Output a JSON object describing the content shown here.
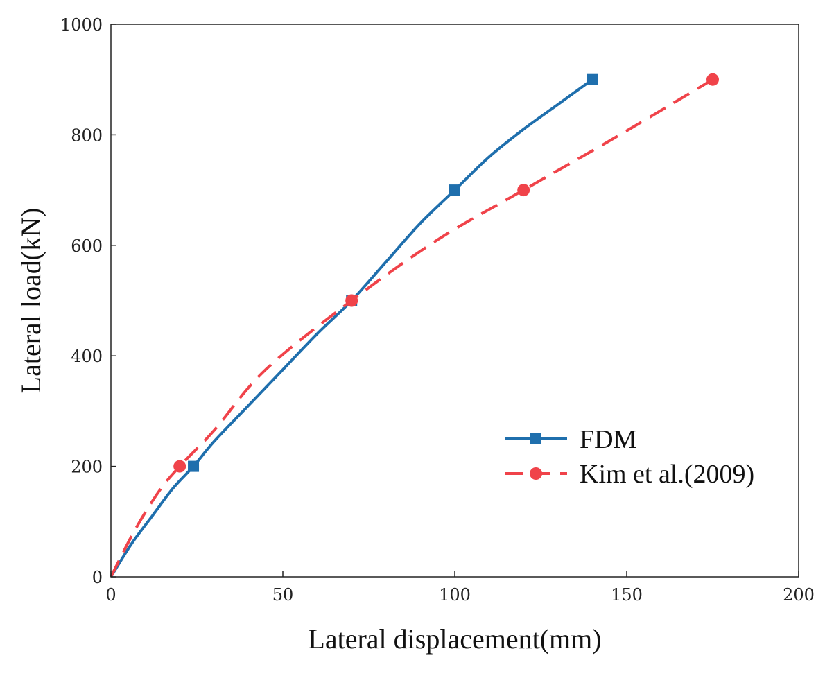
{
  "chart_data": {
    "type": "line",
    "title": "",
    "xlabel": "Lateral displacement(mm)",
    "ylabel": "Lateral load(kN)",
    "xlim": [
      0,
      200
    ],
    "ylim": [
      0,
      1000
    ],
    "xticks": [
      0,
      50,
      100,
      150,
      200
    ],
    "yticks": [
      0,
      200,
      400,
      600,
      800,
      1000
    ],
    "grid": false,
    "legend_position": "lower-right",
    "series": [
      {
        "name": "FDM",
        "color": "#1f6fad",
        "line_style": "solid",
        "marker": "square",
        "curve": [
          {
            "x": 0,
            "y": 0
          },
          {
            "x": 6,
            "y": 60
          },
          {
            "x": 12,
            "y": 110
          },
          {
            "x": 18,
            "y": 160
          },
          {
            "x": 24,
            "y": 200
          },
          {
            "x": 30,
            "y": 245
          },
          {
            "x": 40,
            "y": 310
          },
          {
            "x": 50,
            "y": 375
          },
          {
            "x": 60,
            "y": 440
          },
          {
            "x": 70,
            "y": 500
          },
          {
            "x": 80,
            "y": 570
          },
          {
            "x": 90,
            "y": 640
          },
          {
            "x": 100,
            "y": 700
          },
          {
            "x": 110,
            "y": 760
          },
          {
            "x": 120,
            "y": 810
          },
          {
            "x": 130,
            "y": 855
          },
          {
            "x": 140,
            "y": 900
          }
        ],
        "markers": [
          {
            "x": 24,
            "y": 200
          },
          {
            "x": 70,
            "y": 500
          },
          {
            "x": 100,
            "y": 700
          },
          {
            "x": 140,
            "y": 900
          }
        ]
      },
      {
        "name": "Kim et al.(2009)",
        "color": "#f0434a",
        "line_style": "dashed",
        "marker": "circle",
        "curve": [
          {
            "x": 0,
            "y": 0
          },
          {
            "x": 7,
            "y": 85
          },
          {
            "x": 14,
            "y": 155
          },
          {
            "x": 20,
            "y": 200
          },
          {
            "x": 30,
            "y": 265
          },
          {
            "x": 45,
            "y": 375
          },
          {
            "x": 70,
            "y": 500
          },
          {
            "x": 95,
            "y": 610
          },
          {
            "x": 120,
            "y": 700
          },
          {
            "x": 148,
            "y": 800
          },
          {
            "x": 175,
            "y": 900
          }
        ],
        "markers": [
          {
            "x": 20,
            "y": 200
          },
          {
            "x": 70,
            "y": 500
          },
          {
            "x": 120,
            "y": 700
          },
          {
            "x": 175,
            "y": 900
          }
        ]
      }
    ]
  }
}
